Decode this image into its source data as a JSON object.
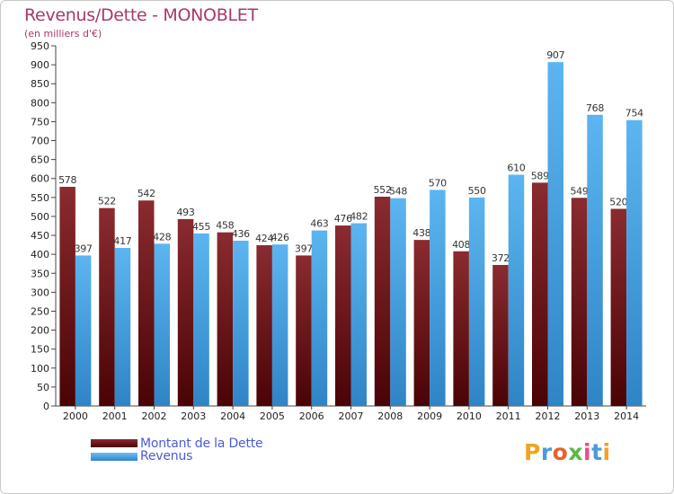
{
  "chart_data": {
    "type": "bar",
    "title": "Revenus/Dette - MONOBLET",
    "subtitle": "(en milliers d'€)",
    "categories": [
      "2000",
      "2001",
      "2002",
      "2003",
      "2004",
      "2005",
      "2006",
      "2007",
      "2008",
      "2009",
      "2010",
      "2011",
      "2012",
      "2013",
      "2014"
    ],
    "series": [
      {
        "name": "Montant de la Dette",
        "values": [
          578,
          522,
          542,
          493,
          458,
          424,
          397,
          476,
          552,
          438,
          408,
          372,
          589,
          549,
          520
        ],
        "color": "#6b0f12"
      },
      {
        "name": "Revenus",
        "values": [
          397,
          417,
          428,
          455,
          436,
          426,
          463,
          482,
          548,
          570,
          550,
          610,
          907,
          768,
          754
        ],
        "color": "#4aa3e3"
      }
    ],
    "ylim": [
      0,
      950
    ],
    "ytick_step": 50,
    "grid": false,
    "legend_position": "bottom-left"
  },
  "logo": {
    "text": "Proxiti"
  }
}
